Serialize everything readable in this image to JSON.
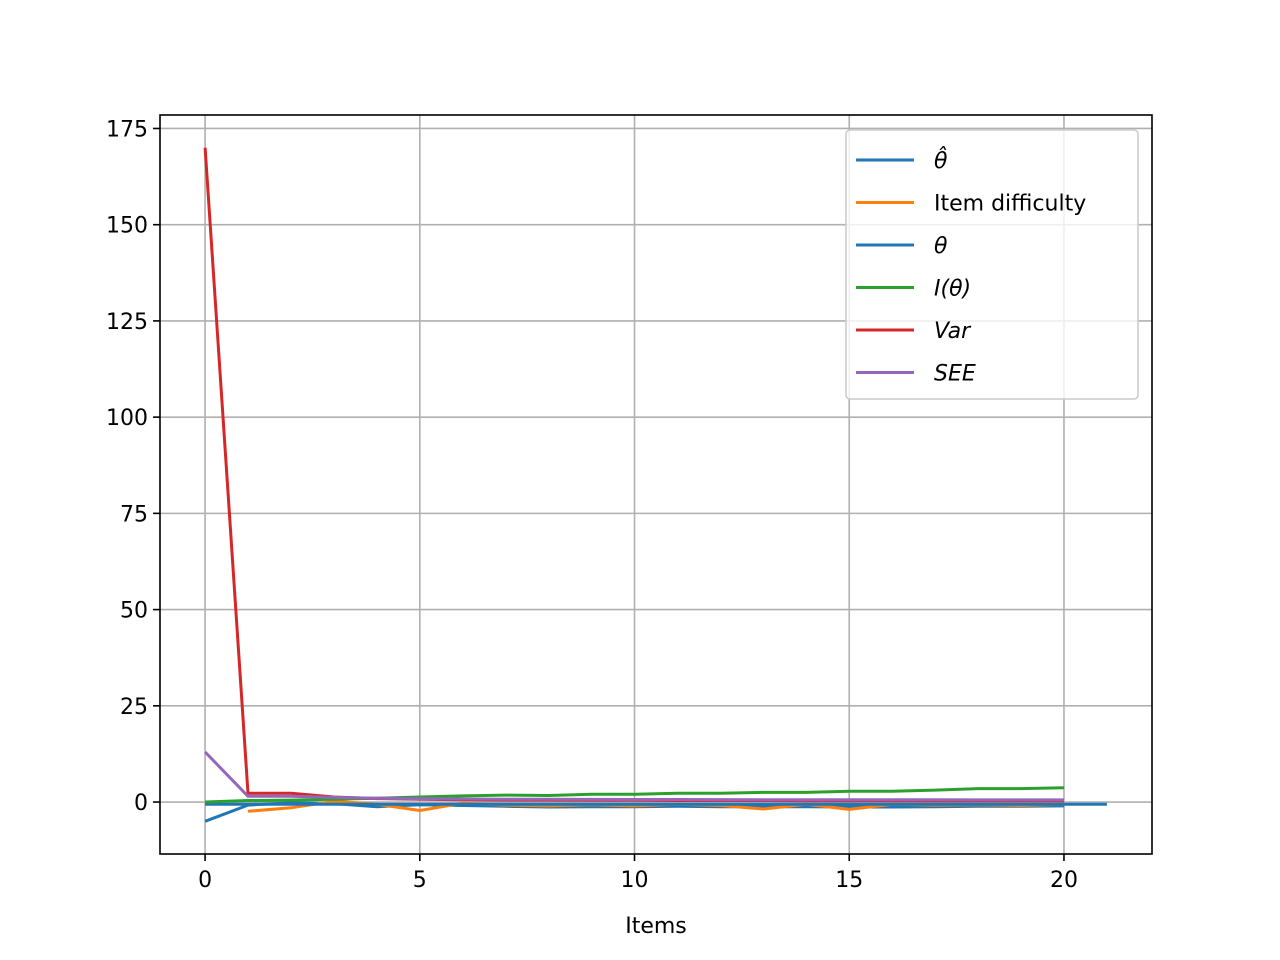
{
  "chart_data": {
    "type": "line",
    "xlabel": "Items",
    "ylabel": "",
    "title": "",
    "xlim": [
      -1.05,
      22.05
    ],
    "ylim": [
      -13.5,
      178.5
    ],
    "xticks": [
      0,
      5,
      10,
      15,
      20
    ],
    "yticks": [
      0,
      25,
      50,
      75,
      100,
      125,
      150,
      175
    ],
    "grid": true,
    "legend_position": "upper right",
    "series": [
      {
        "name": "θ̂",
        "color": "#1f77b4",
        "italic": true,
        "x": [
          0,
          1,
          2,
          3,
          4,
          5,
          6,
          7,
          8,
          9,
          10,
          11,
          12,
          13,
          14,
          15,
          16,
          17,
          18,
          19,
          20
        ],
        "y": [
          -5.0,
          -0.8,
          -0.2,
          -0.4,
          -1.2,
          -0.7,
          -0.9,
          -1.1,
          -1.3,
          -1.2,
          -1.2,
          -1.1,
          -1.2,
          -1.2,
          -1.2,
          -1.3,
          -1.3,
          -1.2,
          -1.1,
          -1.1,
          -1.0
        ]
      },
      {
        "name": "Item difficulty",
        "color": "#ff7f0e",
        "italic": false,
        "x": [
          1,
          2,
          3,
          4,
          5,
          6,
          7,
          8,
          9,
          10,
          11,
          12,
          13,
          14,
          15,
          16,
          17,
          18,
          19,
          20
        ],
        "y": [
          -2.4,
          -1.5,
          0.2,
          -0.6,
          -2.2,
          -0.3,
          -0.8,
          -1.0,
          -0.7,
          -1.0,
          -0.6,
          -0.9,
          -1.8,
          -0.6,
          -1.9,
          -0.6,
          -0.8,
          -0.7,
          -0.9,
          -0.6
        ]
      },
      {
        "name": "θ",
        "color": "#1f77b4",
        "italic": true,
        "x": [
          0,
          21
        ],
        "y": [
          -0.6,
          -0.6
        ]
      },
      {
        "name": "I(θ)",
        "color": "#2ca02c",
        "italic": true,
        "x": [
          0,
          1,
          2,
          3,
          4,
          5,
          6,
          7,
          8,
          9,
          10,
          11,
          12,
          13,
          14,
          15,
          16,
          17,
          18,
          19,
          20
        ],
        "y": [
          0.0,
          0.4,
          0.5,
          0.7,
          1.0,
          1.3,
          1.6,
          1.8,
          1.7,
          2.0,
          2.0,
          2.3,
          2.3,
          2.5,
          2.5,
          2.8,
          2.8,
          3.1,
          3.5,
          3.5,
          3.7
        ]
      },
      {
        "name": "Var",
        "color": "#d62728",
        "italic": true,
        "x": [
          0,
          1,
          2,
          3,
          4,
          5,
          6,
          7,
          8,
          9,
          10,
          11,
          12,
          13,
          14,
          15,
          16,
          17,
          18,
          19,
          20
        ],
        "y": [
          170.0,
          2.3,
          2.3,
          1.3,
          0.9,
          0.7,
          0.6,
          0.5,
          0.5,
          0.45,
          0.45,
          0.4,
          0.4,
          0.4,
          0.35,
          0.35,
          0.35,
          0.3,
          0.3,
          0.3,
          0.3
        ]
      },
      {
        "name": "SEE",
        "color": "#9467bd",
        "italic": true,
        "x": [
          0,
          1,
          2,
          3,
          4,
          5,
          6,
          7,
          8,
          9,
          10,
          11,
          12,
          13,
          14,
          15,
          16,
          17,
          18,
          19,
          20
        ],
        "y": [
          13.0,
          1.5,
          1.5,
          1.2,
          1.0,
          0.85,
          0.78,
          0.72,
          0.7,
          0.68,
          0.66,
          0.65,
          0.64,
          0.62,
          0.6,
          0.6,
          0.58,
          0.57,
          0.55,
          0.55,
          0.55
        ]
      }
    ]
  }
}
